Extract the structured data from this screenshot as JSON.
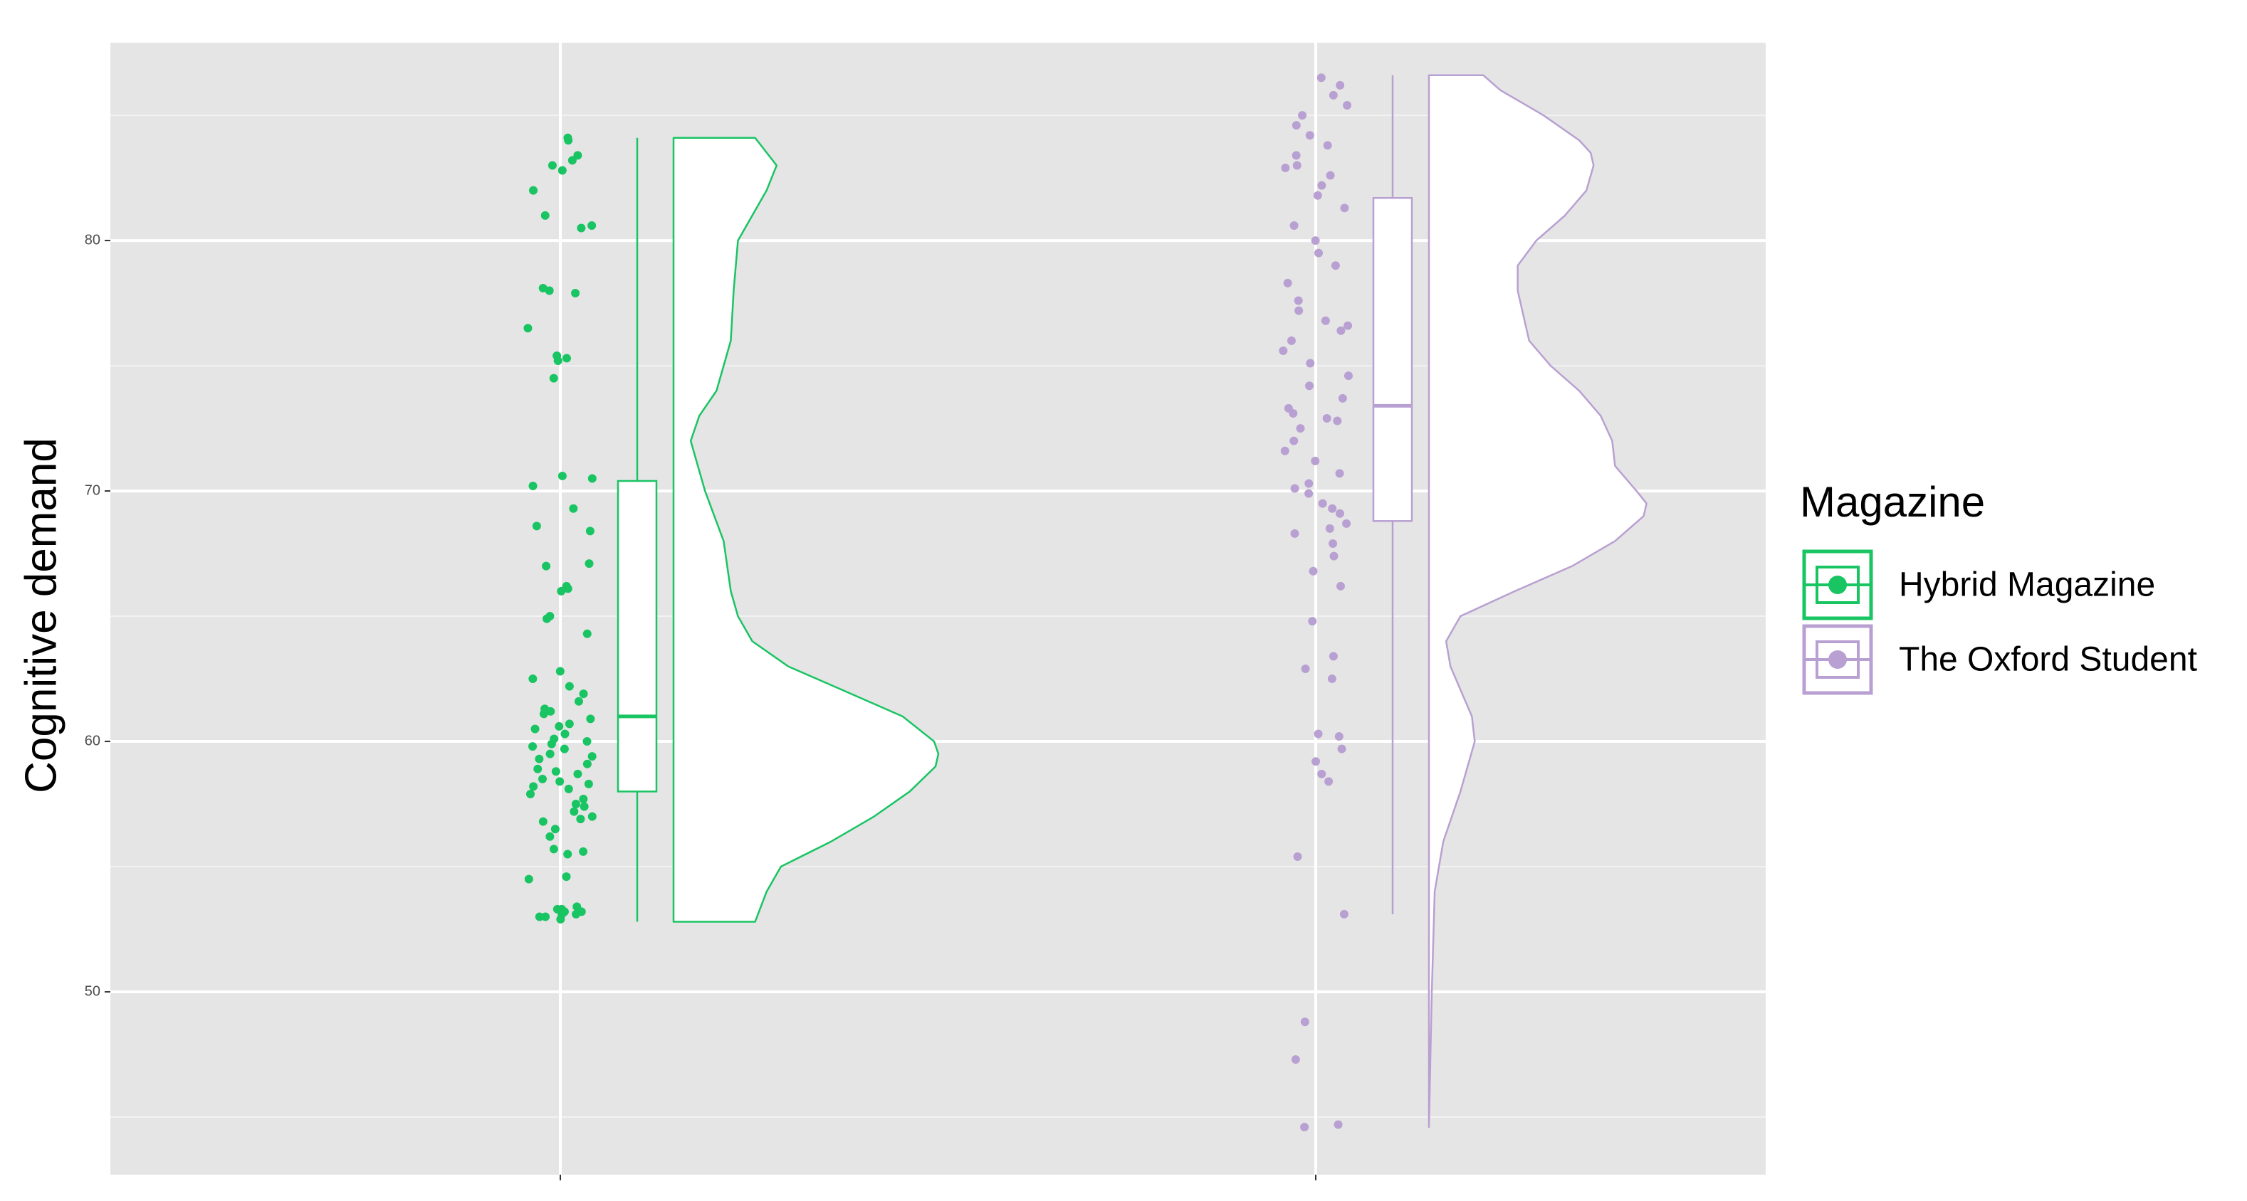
{
  "chart_data": {
    "type": "raincloud",
    "y_label": "Cognitive demand",
    "legend_title": "Magazine",
    "ylim": [
      42.7,
      87.9
    ],
    "yticks": [
      50,
      60,
      70,
      80
    ],
    "minor_yticks": [
      45,
      55,
      65,
      75,
      85
    ],
    "grid": true,
    "series": [
      {
        "name": "Hybrid Magazine",
        "color": "#19c463",
        "box": {
          "min": 52.8,
          "q1": 58.0,
          "median": 61.0,
          "q3": 70.4,
          "max": 84.1
        },
        "density": {
          "y": [
            52.8,
            54,
            55,
            56,
            57,
            58,
            59,
            59.5,
            60,
            61,
            62,
            63,
            64,
            65,
            66,
            68,
            70,
            72,
            73,
            74,
            76,
            78,
            80,
            82,
            83,
            84.1
          ],
          "values": [
            57,
            65,
            75,
            110,
            140,
            165,
            183,
            185,
            182,
            160,
            120,
            80,
            55,
            45,
            40,
            35,
            22,
            12,
            18,
            30,
            40,
            42,
            45,
            65,
            72,
            57
          ]
        },
        "points": [
          53.0,
          53.1,
          53.2,
          53.3,
          53.0,
          53.2,
          53.4,
          52.9,
          53.1,
          53.3,
          54.5,
          54.6,
          55.5,
          55.7,
          55.6,
          56.2,
          56.5,
          56.8,
          57.0,
          57.2,
          57.4,
          57.7,
          57.9,
          58.1,
          58.3,
          58.5,
          58.7,
          58.9,
          59.1,
          59.3,
          59.5,
          59.7,
          59.9,
          60.1,
          60.3,
          60.5,
          60.7,
          60.9,
          61.1,
          61.3,
          61.6,
          61.9,
          62.2,
          62.5,
          62.8,
          56.9,
          57.5,
          58.2,
          58.8,
          59.4,
          60.0,
          60.6,
          61.2,
          58.4,
          59.8,
          64.3,
          64.9,
          65.0,
          66.1,
          66.2,
          66.0,
          67.0,
          67.1,
          68.4,
          68.6,
          69.3,
          70.2,
          70.5,
          70.6,
          74.5,
          75.3,
          75.4,
          75.2,
          76.5,
          77.9,
          78.0,
          78.1,
          80.5,
          80.6,
          81.0,
          82.0,
          82.8,
          83.0,
          83.2,
          83.4,
          84.0,
          84.1
        ]
      },
      {
        "name": "The Oxford Student",
        "color": "#b9a0d2",
        "box": {
          "min": 53.1,
          "q1": 68.8,
          "median": 73.4,
          "q3": 81.7,
          "max": 86.6
        },
        "density": {
          "y": [
            44.6,
            50,
            54,
            56,
            58,
            60,
            61,
            63,
            64,
            65,
            66,
            67,
            68,
            69,
            69.5,
            70,
            71,
            72,
            73,
            74,
            75,
            76,
            78,
            79,
            80,
            81,
            82,
            83,
            83.5,
            84,
            85,
            86,
            86.6
          ],
          "values": [
            0,
            2,
            4,
            10,
            22,
            32,
            30,
            15,
            12,
            22,
            60,
            100,
            130,
            150,
            152,
            145,
            130,
            128,
            120,
            105,
            85,
            70,
            62,
            62,
            75,
            95,
            110,
            115,
            113,
            105,
            80,
            50,
            38
          ]
        },
        "points": [
          44.6,
          44.7,
          47.3,
          48.8,
          53.1,
          55.4,
          58.4,
          58.7,
          59.2,
          59.7,
          60.2,
          60.3,
          62.5,
          62.9,
          63.4,
          64.8,
          66.2,
          66.8,
          67.4,
          67.9,
          68.3,
          68.7,
          69.1,
          69.5,
          69.9,
          70.3,
          70.7,
          71.2,
          71.6,
          72.0,
          72.5,
          72.9,
          73.3,
          73.7,
          74.2,
          74.6,
          75.1,
          75.6,
          76.0,
          76.4,
          76.8,
          77.2,
          77.6,
          78.3,
          79.0,
          79.5,
          80.0,
          80.6,
          81.3,
          81.8,
          82.2,
          82.6,
          83.0,
          83.4,
          83.8,
          84.2,
          84.6,
          85.0,
          85.4,
          85.8,
          86.2,
          86.5,
          68.5,
          69.3,
          70.1,
          72.8,
          73.1,
          76.6,
          82.9
        ]
      }
    ]
  }
}
